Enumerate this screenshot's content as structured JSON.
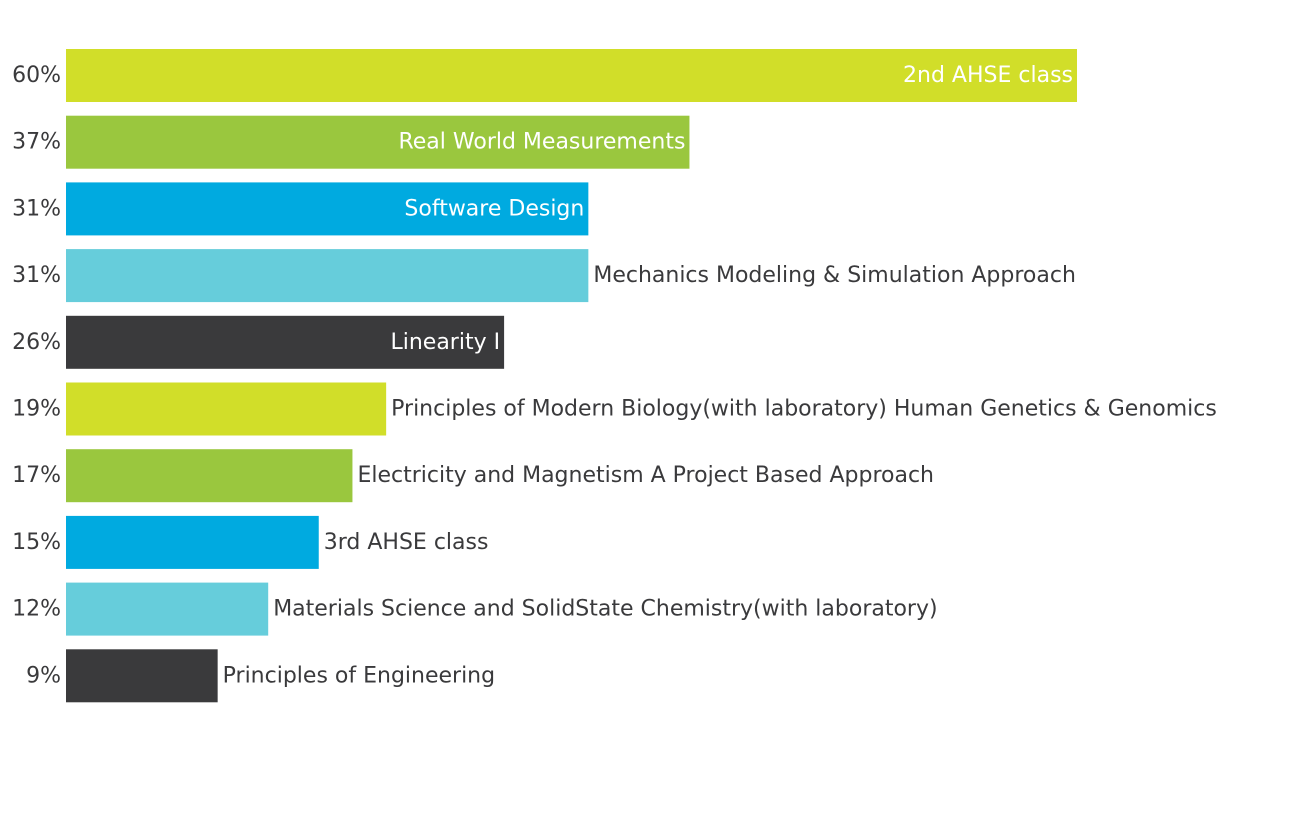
{
  "chart_data": {
    "type": "bar",
    "orientation": "horizontal",
    "title": "",
    "xlabel": "",
    "ylabel": "",
    "xlim": [
      0,
      60
    ],
    "grid": false,
    "legend": "none",
    "categories": [
      "2nd AHSE class",
      "Real World Measurements",
      "Software Design",
      "Mechanics Modeling & Simulation Approach",
      "Linearity I",
      "Principles of Modern Biology(with laboratory) Human Genetics & Genomics",
      "Electricity and Magnetism A Project Based Approach",
      "3rd AHSE class",
      "Materials Science and SolidState Chemistry(with laboratory)",
      "Principles of Engineering"
    ],
    "values": [
      60,
      37,
      31,
      31,
      26,
      19,
      17,
      15,
      12,
      9
    ],
    "value_labels": [
      "60%",
      "37%",
      "31%",
      "31%",
      "26%",
      "19%",
      "17%",
      "15%",
      "12%",
      "9%"
    ],
    "bar_colors": [
      "#d1de29",
      "#9ac73e",
      "#00aae0",
      "#66cddb",
      "#3a3a3c",
      "#d1de29",
      "#9ac73e",
      "#00aae0",
      "#66cddb",
      "#3a3a3c"
    ],
    "label_inside": [
      true,
      true,
      true,
      false,
      true,
      false,
      false,
      false,
      false,
      false
    ],
    "inside_label_color": "#ffffff",
    "outside_label_color": "#3a3a3c"
  }
}
